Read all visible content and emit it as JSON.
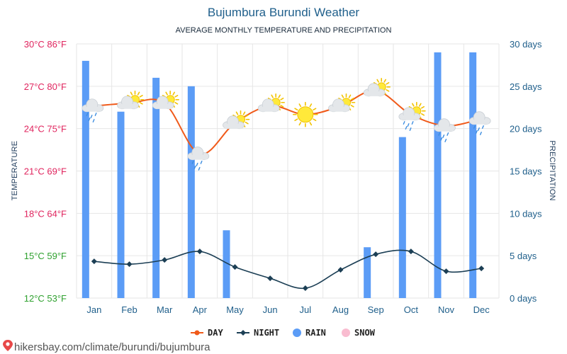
{
  "chart_data": {
    "type": "bar",
    "title": "Bujumbura Burundi Weather",
    "subtitle": "AVERAGE MONTHLY TEMPERATURE AND PRECIPITATION",
    "categories": [
      "Jan",
      "Feb",
      "Mar",
      "Apr",
      "May",
      "Jun",
      "Jul",
      "Aug",
      "Sep",
      "Oct",
      "Nov",
      "Dec"
    ],
    "left_axis": {
      "label": "TEMPERATURE",
      "range": [
        12,
        30
      ],
      "ticks": [
        {
          "value": 30,
          "label": "30°C 86°F",
          "color": "#e0245e"
        },
        {
          "value": 27,
          "label": "27°C 80°F",
          "color": "#e0245e"
        },
        {
          "value": 24,
          "label": "24°C 75°F",
          "color": "#e0245e"
        },
        {
          "value": 21,
          "label": "21°C 69°F",
          "color": "#e0245e"
        },
        {
          "value": 18,
          "label": "18°C 64°F",
          "color": "#e0245e"
        },
        {
          "value": 15,
          "label": "15°C 59°F",
          "color": "#2fa12f"
        },
        {
          "value": 12,
          "label": "12°C 53°F",
          "color": "#2fa12f"
        }
      ]
    },
    "right_axis": {
      "label": "PRECIPITATION",
      "range": [
        0,
        30
      ],
      "ticks": [
        {
          "value": 30,
          "label": "30 days"
        },
        {
          "value": 25,
          "label": "25 days"
        },
        {
          "value": 20,
          "label": "20 days"
        },
        {
          "value": 15,
          "label": "15 days"
        },
        {
          "value": 10,
          "label": "10 days"
        },
        {
          "value": 5,
          "label": "5 days"
        },
        {
          "value": 0,
          "label": "0 days"
        }
      ]
    },
    "series": [
      {
        "name": "DAY",
        "type": "line",
        "axis": "left",
        "color": "#f05a1a",
        "values": [
          25.6,
          25.8,
          25.8,
          22.2,
          24.4,
          25.6,
          25.0,
          25.6,
          26.7,
          25.0,
          24.2,
          24.7
        ]
      },
      {
        "name": "NIGHT",
        "type": "line",
        "axis": "left",
        "color": "#1c3f55",
        "values": [
          14.6,
          14.4,
          14.7,
          15.3,
          14.2,
          13.4,
          12.7,
          14.0,
          15.1,
          15.3,
          13.9,
          14.1
        ]
      },
      {
        "name": "RAIN",
        "type": "bar",
        "axis": "right",
        "color": "#5b9cf6",
        "values": [
          28,
          22,
          26,
          25,
          8,
          0,
          0,
          0,
          6,
          19,
          29,
          29
        ]
      },
      {
        "name": "SNOW",
        "type": "bar",
        "axis": "right",
        "color": "#f9bcd0",
        "values": [
          0,
          0,
          0,
          0,
          0,
          0,
          0,
          0,
          0,
          0,
          0,
          0
        ]
      }
    ],
    "weather_icons": [
      "cloud-rain-icon",
      "partly-cloudy-icon",
      "partly-cloudy-icon",
      "cloud-rain-icon",
      "partly-cloudy-icon",
      "partly-cloudy-icon",
      "sun-icon",
      "partly-cloudy-icon",
      "partly-cloudy-icon",
      "partly-cloudy-rain-icon",
      "cloud-rain-icon",
      "cloud-rain-icon"
    ],
    "legend": {
      "placement": "bottom"
    },
    "grid": true
  },
  "source": "hikersbay.com/climate/burundi/bujumbura",
  "colors": {
    "grid": "#e6e6e6",
    "right_axis_text": "#1f5f8b",
    "category_text": "#1f5f8b",
    "sun": "#ffe93a",
    "sun_edge": "#f2c200",
    "cloud": "#e4e7ea",
    "rain_drop": "#3e8ee0"
  }
}
